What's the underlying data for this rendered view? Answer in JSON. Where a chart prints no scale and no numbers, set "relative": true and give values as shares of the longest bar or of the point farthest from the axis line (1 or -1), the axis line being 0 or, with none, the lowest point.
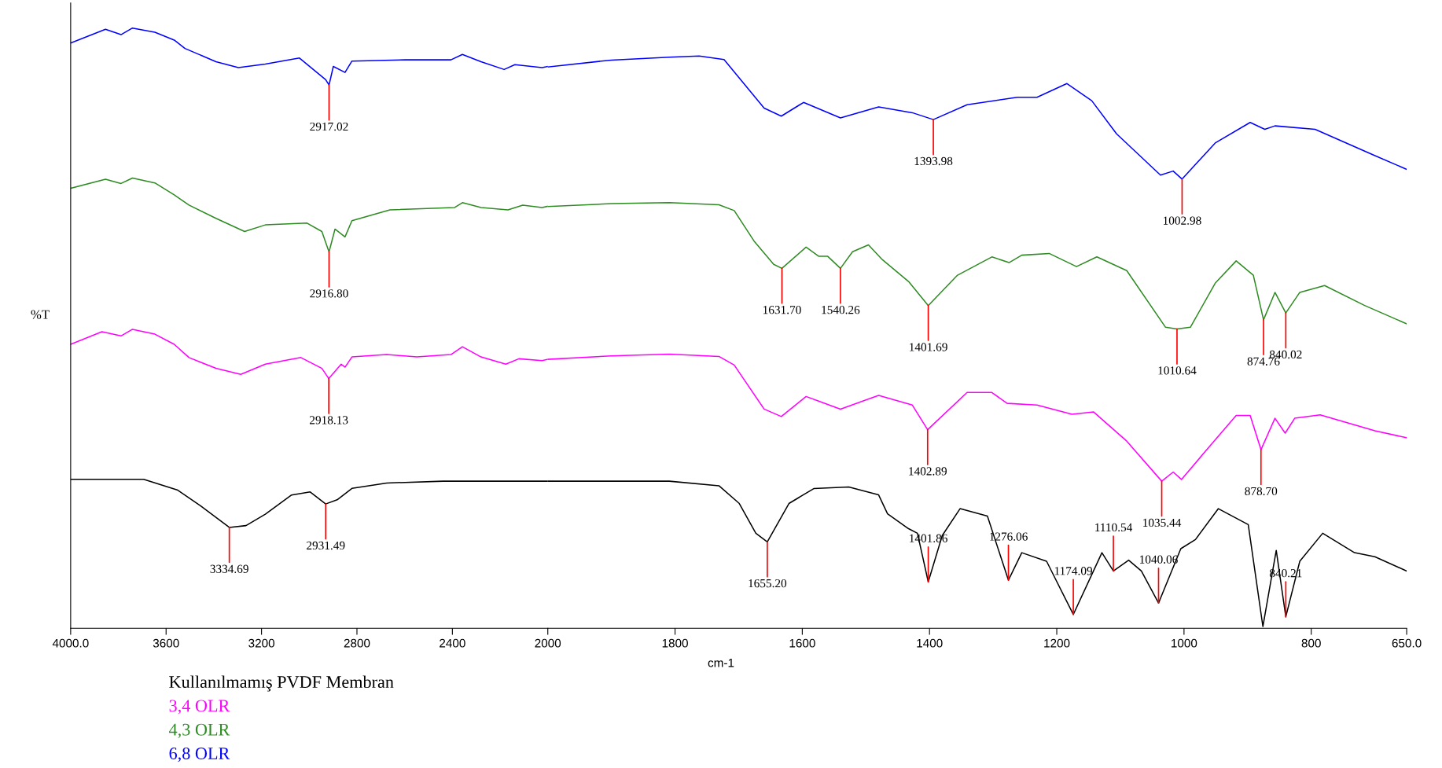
{
  "chart_data": [
    {
      "type": "line",
      "relative": true,
      "ylabel": "%T",
      "tick_labels": "x",
      "xlim": [
        4000,
        2000
      ],
      "xticks": [
        {
          "value": 4000,
          "label": "4000.0"
        },
        3600,
        3200,
        2800,
        2400
      ],
      "series": [
        {
          "name": "Kullanılmamış PVDF Membran",
          "color": "#000000",
          "x": [
            4000,
            3694,
            3551,
            3456,
            3335,
            3265,
            3184,
            3074,
            2996,
            2931,
            2883,
            2821,
            2675,
            2439,
            2000
          ],
          "values": [
            0.248,
            0.248,
            0.23,
            0.204,
            0.168,
            0.171,
            0.19,
            0.222,
            0.227,
            0.207,
            0.214,
            0.233,
            0.242,
            0.245,
            0.245
          ]
        },
        {
          "name": "3,4 OLR",
          "color": "#ff00ff",
          "x": [
            4000,
            3869,
            3789,
            3741,
            3647,
            3566,
            3504,
            3391,
            3287,
            3184,
            3035,
            2947,
            2918,
            2866,
            2850,
            2821,
            2675,
            2549,
            2406,
            2358,
            2280,
            2176,
            2121,
            2024,
            2000
          ],
          "values": [
            0.473,
            0.494,
            0.487,
            0.498,
            0.49,
            0.473,
            0.451,
            0.433,
            0.423,
            0.44,
            0.451,
            0.433,
            0.416,
            0.44,
            0.435,
            0.452,
            0.456,
            0.452,
            0.456,
            0.469,
            0.452,
            0.44,
            0.449,
            0.446,
            0.448
          ]
        },
        {
          "name": "4,3 OLR",
          "color": "#2e8b22",
          "x": [
            4000,
            3854,
            3789,
            3741,
            3647,
            3566,
            3504,
            3391,
            3271,
            3184,
            3009,
            2947,
            2917,
            2892,
            2850,
            2821,
            2662,
            2390,
            2358,
            2280,
            2167,
            2105,
            2024,
            2000
          ],
          "values": [
            0.733,
            0.748,
            0.741,
            0.75,
            0.742,
            0.722,
            0.705,
            0.683,
            0.661,
            0.672,
            0.675,
            0.661,
            0.627,
            0.665,
            0.652,
            0.679,
            0.697,
            0.701,
            0.709,
            0.701,
            0.697,
            0.705,
            0.701,
            0.703
          ]
        },
        {
          "name": "6,8 OLR",
          "color": "#0000ff",
          "x": [
            4000,
            3854,
            3789,
            3741,
            3647,
            3566,
            3521,
            3391,
            3297,
            3184,
            3041,
            2931,
            2917,
            2899,
            2850,
            2821,
            2597,
            2406,
            2358,
            2280,
            2183,
            2138,
            2024,
            2000
          ],
          "values": [
            0.975,
            0.998,
            0.989,
            1.0,
            0.993,
            0.98,
            0.966,
            0.944,
            0.934,
            0.94,
            0.95,
            0.914,
            0.905,
            0.936,
            0.926,
            0.945,
            0.947,
            0.947,
            0.956,
            0.944,
            0.931,
            0.939,
            0.934,
            0.936
          ]
        }
      ],
      "annotations": [
        {
          "text": "2917.02",
          "x": 2917,
          "y": 0.905
        },
        {
          "text": "2916.80",
          "x": 2917,
          "y": 0.627
        },
        {
          "text": "2918.13",
          "x": 2918,
          "y": 0.416
        },
        {
          "text": "3334.69",
          "x": 3335,
          "y": 0.168
        },
        {
          "text": "2931.49",
          "x": 2931,
          "y": 0.207
        }
      ]
    },
    {
      "type": "line",
      "relative": true,
      "xlabel": "cm-1",
      "tick_labels": "x",
      "xlim": [
        2000,
        650
      ],
      "xticks": [
        2000,
        1800,
        1600,
        1400,
        1200,
        1000,
        800,
        {
          "value": 650,
          "label": "650.0"
        }
      ],
      "series": [
        {
          "color": "#000000",
          "x": [
            2000,
            1809,
            1731,
            1699,
            1673,
            1655,
            1621,
            1582,
            1527,
            1480,
            1466,
            1433,
            1419,
            1402,
            1380,
            1352,
            1309,
            1276,
            1255,
            1216,
            1174,
            1129,
            1111,
            1087,
            1067,
            1040,
            1005,
            982,
            946,
            899,
            876,
            855,
            840,
            818,
            782,
            732,
            700,
            650
          ],
          "values": [
            0.257,
            0.257,
            0.249,
            0.218,
            0.166,
            0.151,
            0.218,
            0.244,
            0.247,
            0.233,
            0.2,
            0.174,
            0.166,
            0.081,
            0.162,
            0.209,
            0.196,
            0.084,
            0.132,
            0.117,
            0.024,
            0.132,
            0.1,
            0.119,
            0.1,
            0.044,
            0.139,
            0.155,
            0.209,
            0.181,
            0.003,
            0.136,
            0.02,
            0.117,
            0.166,
            0.132,
            0.125,
            0.1
          ]
        },
        {
          "color": "#ff00ff",
          "x": [
            2000,
            1900,
            1809,
            1731,
            1707,
            1660,
            1633,
            1594,
            1540,
            1480,
            1427,
            1403,
            1341,
            1302,
            1278,
            1231,
            1176,
            1142,
            1090,
            1035,
            1017,
            1004,
            965,
            918,
            896,
            879,
            857,
            841,
            826,
            786,
            700,
            650
          ],
          "values": [
            0.47,
            0.476,
            0.479,
            0.475,
            0.46,
            0.383,
            0.37,
            0.405,
            0.383,
            0.407,
            0.39,
            0.347,
            0.412,
            0.412,
            0.393,
            0.39,
            0.374,
            0.378,
            0.327,
            0.257,
            0.273,
            0.26,
            0.311,
            0.372,
            0.372,
            0.312,
            0.367,
            0.341,
            0.367,
            0.373,
            0.345,
            0.333
          ]
        },
        {
          "color": "#2e8b22",
          "x": [
            2000,
            1900,
            1809,
            1731,
            1707,
            1676,
            1645,
            1632,
            1594,
            1574,
            1560,
            1540,
            1521,
            1496,
            1474,
            1433,
            1402,
            1356,
            1302,
            1275,
            1255,
            1212,
            1169,
            1137,
            1090,
            1029,
            1011,
            990,
            951,
            918,
            891,
            875,
            857,
            840,
            818,
            779,
            716,
            650
          ],
          "values": [
            0.737,
            0.742,
            0.744,
            0.74,
            0.73,
            0.677,
            0.636,
            0.629,
            0.666,
            0.65,
            0.65,
            0.629,
            0.658,
            0.67,
            0.644,
            0.606,
            0.564,
            0.617,
            0.649,
            0.639,
            0.652,
            0.655,
            0.632,
            0.649,
            0.625,
            0.526,
            0.523,
            0.526,
            0.603,
            0.642,
            0.617,
            0.539,
            0.587,
            0.551,
            0.587,
            0.599,
            0.564,
            0.532
          ]
        },
        {
          "color": "#0000ff",
          "x": [
            2000,
            1900,
            1809,
            1762,
            1723,
            1660,
            1633,
            1598,
            1540,
            1480,
            1427,
            1394,
            1341,
            1262,
            1231,
            1184,
            1145,
            1106,
            1037,
            1017,
            1003,
            951,
            896,
            873,
            857,
            794,
            702,
            650
          ],
          "values": [
            0.981,
            0.993,
            0.998,
            1.0,
            0.994,
            0.909,
            0.895,
            0.919,
            0.892,
            0.911,
            0.901,
            0.889,
            0.915,
            0.928,
            0.928,
            0.952,
            0.922,
            0.864,
            0.792,
            0.799,
            0.785,
            0.848,
            0.884,
            0.872,
            0.878,
            0.872,
            0.827,
            0.802
          ]
        }
      ],
      "annotations": [
        {
          "text": "1393.98",
          "x": 1394,
          "y": 0.889
        },
        {
          "text": "1002.98",
          "x": 1003,
          "y": 0.785
        },
        {
          "text": "1631.70",
          "x": 1632,
          "y": 0.629
        },
        {
          "text": "1540.26",
          "x": 1540,
          "y": 0.629
        },
        {
          "text": "1401.69",
          "x": 1402,
          "y": 0.564
        },
        {
          "text": "1010.64",
          "x": 1011,
          "y": 0.523
        },
        {
          "text": "874.76",
          "x": 875,
          "y": 0.539
        },
        {
          "text": "840.02",
          "x": 840,
          "y": 0.551
        },
        {
          "text": "1402.89",
          "x": 1403,
          "y": 0.347
        },
        {
          "text": "1035.44",
          "x": 1035,
          "y": 0.257
        },
        {
          "text": "878.70",
          "x": 879,
          "y": 0.312
        },
        {
          "text": "1655.20",
          "x": 1655,
          "y": 0.151
        },
        {
          "text": "1401.86",
          "x": 1402,
          "y": 0.081
        },
        {
          "text": "1276.06",
          "x": 1276,
          "y": 0.084
        },
        {
          "text": "1174.09",
          "x": 1174,
          "y": 0.024
        },
        {
          "text": "1110.54",
          "x": 1111,
          "y": 0.1
        },
        {
          "text": "1040.06",
          "x": 1040,
          "y": 0.044
        },
        {
          "text": "840.21",
          "x": 840,
          "y": 0.02
        }
      ]
    }
  ]
}
